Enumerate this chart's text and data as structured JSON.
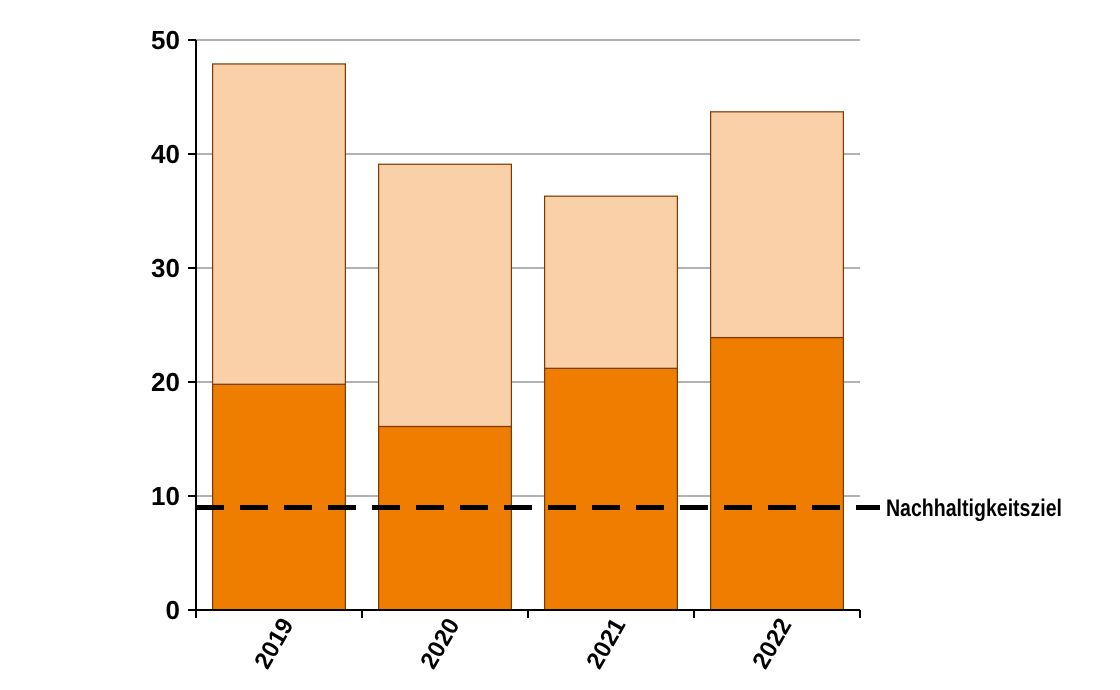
{
  "chart_data": {
    "type": "bar",
    "stacked": true,
    "categories": [
      "2019",
      "2020",
      "2021",
      "2022"
    ],
    "series": [
      {
        "color": "#ef7d00",
        "values": [
          19.8,
          16.1,
          21.2,
          23.9
        ]
      },
      {
        "color": "#fad0a9",
        "values": [
          28.1,
          23.0,
          15.1,
          19.8
        ]
      }
    ],
    "ylim": [
      0,
      50
    ],
    "yticks": [
      0,
      10,
      20,
      30,
      40,
      50
    ],
    "grid": "y",
    "ref_lines": [
      {
        "axis": "y",
        "value": 9,
        "label": "Nachhaltigkeitsziel",
        "color": "#000000",
        "line_style": "dashed"
      }
    ]
  }
}
